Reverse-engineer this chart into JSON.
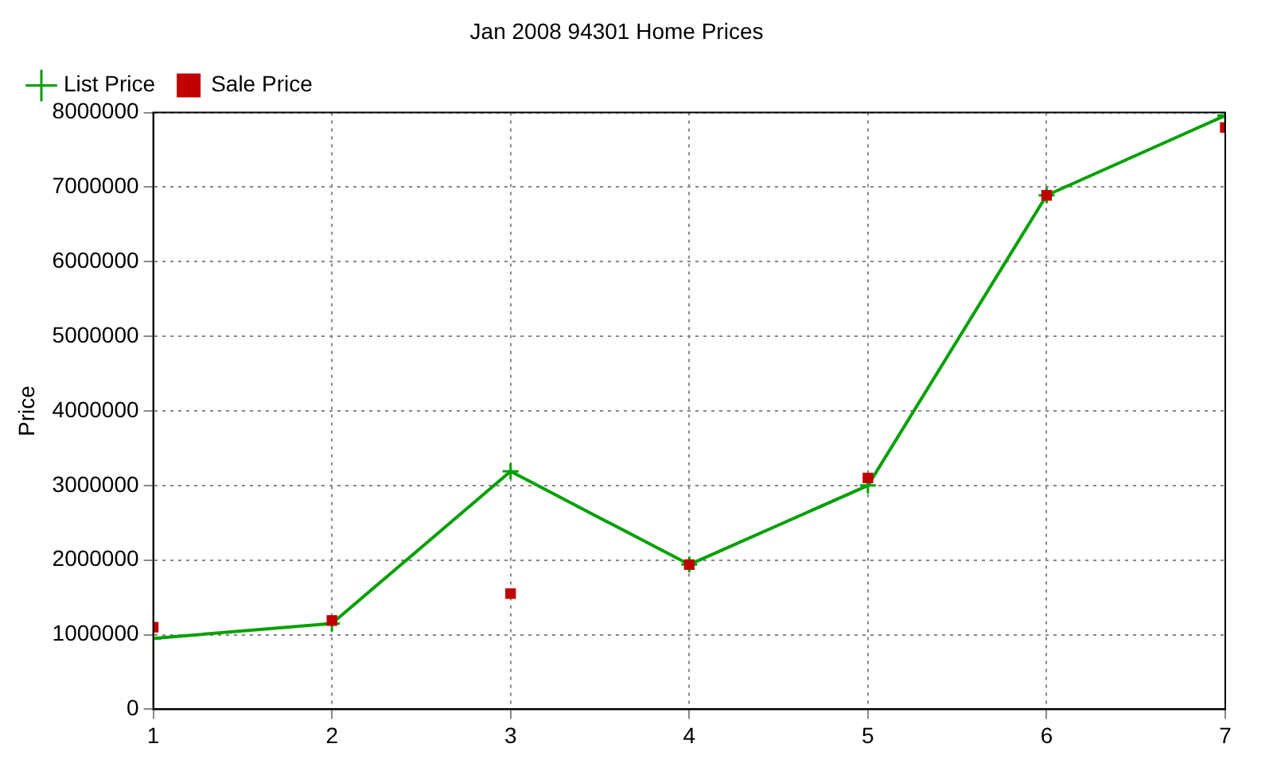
{
  "chart_data": {
    "type": "line",
    "title": "Jan 2008 94301 Home Prices",
    "ylabel": "Price",
    "x": [
      1,
      2,
      3,
      4,
      5,
      6,
      7
    ],
    "xlim": [
      1,
      7
    ],
    "xticks": [
      1,
      2,
      3,
      4,
      5,
      6,
      7
    ],
    "ylim": [
      0,
      8000000
    ],
    "yticks": [
      0,
      1000000,
      2000000,
      3000000,
      4000000,
      5000000,
      6000000,
      7000000,
      8000000
    ],
    "grid": true,
    "legend": "top left",
    "series": [
      {
        "name": "List Price",
        "color": "#00a000",
        "marker": "cross",
        "values": [
          950000,
          1150000,
          3190000,
          1940000,
          3000000,
          6890000,
          7960000
        ]
      },
      {
        "name": "Sale Price",
        "type": "scatter",
        "color": "#c00000",
        "marker": "square",
        "values": [
          1100000,
          1190000,
          1550000,
          1940000,
          3100000,
          6890000,
          7800000
        ]
      }
    ]
  }
}
